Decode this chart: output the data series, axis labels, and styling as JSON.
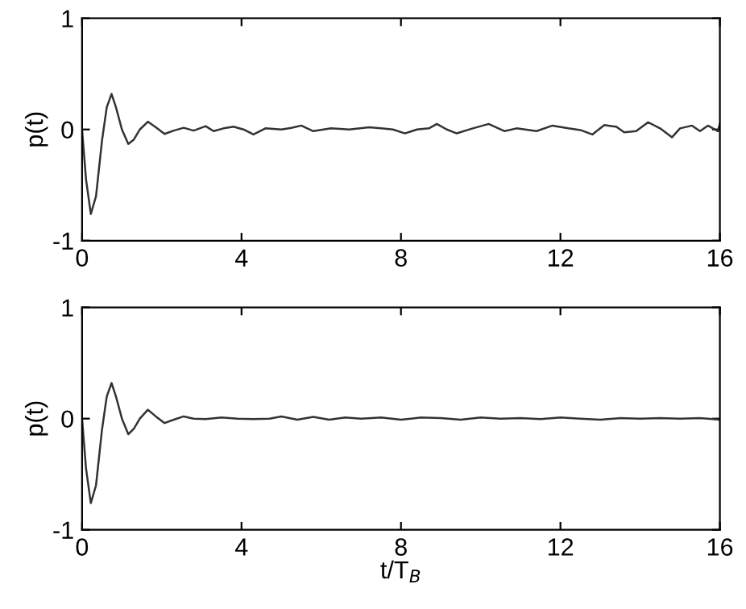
{
  "chart_data": [
    {
      "type": "line",
      "ylabel": "p(t)",
      "xlim": [
        0,
        16
      ],
      "ylim": [
        -1,
        1
      ],
      "xticks": [
        0,
        4,
        8,
        12,
        16
      ],
      "yticks": [
        -1,
        0,
        1
      ],
      "grid": false,
      "marker": "none",
      "line_style": "solid",
      "series": [
        {
          "color": "#333333",
          "x": [
            0,
            0.1,
            0.22,
            0.35,
            0.5,
            0.62,
            0.74,
            0.85,
            1.0,
            1.16,
            1.3,
            1.45,
            1.65,
            1.85,
            2.07,
            2.3,
            2.55,
            2.8,
            3.1,
            3.3,
            3.55,
            3.8,
            4.05,
            4.3,
            4.6,
            5.0,
            5.25,
            5.5,
            5.8,
            6.25,
            6.7,
            7.2,
            7.5,
            7.8,
            8.1,
            8.4,
            8.7,
            8.9,
            9.15,
            9.4,
            9.8,
            10.2,
            10.6,
            10.9,
            11.4,
            11.8,
            12.2,
            12.5,
            12.8,
            13.1,
            13.4,
            13.6,
            13.9,
            14.2,
            14.5,
            14.8,
            15.0,
            15.3,
            15.5,
            15.7,
            15.95,
            16.0
          ],
          "values": [
            0,
            -0.45,
            -0.76,
            -0.6,
            -0.1,
            0.2,
            0.32,
            0.2,
            0.0,
            -0.13,
            -0.09,
            0.0,
            0.07,
            0.02,
            -0.04,
            -0.01,
            0.015,
            -0.01,
            0.03,
            -0.015,
            0.01,
            0.025,
            0.0,
            -0.045,
            0.01,
            0.0,
            0.015,
            0.035,
            -0.015,
            0.01,
            0.0,
            0.02,
            0.01,
            0.0,
            -0.035,
            0.0,
            0.01,
            0.05,
            0.0,
            -0.035,
            0.01,
            0.05,
            -0.015,
            0.01,
            -0.015,
            0.035,
            0.01,
            -0.005,
            -0.045,
            0.04,
            0.025,
            -0.025,
            -0.015,
            0.065,
            0.01,
            -0.07,
            0.01,
            0.035,
            -0.015,
            0.035,
            -0.015,
            0.05
          ]
        }
      ]
    },
    {
      "type": "line",
      "ylabel": "p(t)",
      "xlabel": "t/T$_{B}$",
      "xlim": [
        0,
        16
      ],
      "ylim": [
        -1,
        1
      ],
      "xticks": [
        0,
        4,
        8,
        12,
        16
      ],
      "yticks": [
        -1,
        0,
        1
      ],
      "grid": false,
      "marker": "none",
      "line_style": "solid",
      "series": [
        {
          "color": "#333333",
          "x": [
            0,
            0.1,
            0.22,
            0.35,
            0.5,
            0.62,
            0.74,
            0.85,
            1.0,
            1.16,
            1.3,
            1.45,
            1.65,
            1.85,
            2.07,
            2.3,
            2.55,
            2.8,
            3.1,
            3.5,
            3.9,
            4.3,
            4.7,
            5.0,
            5.4,
            5.8,
            6.2,
            6.6,
            7.0,
            7.5,
            8.0,
            8.5,
            9.0,
            9.5,
            10.0,
            10.5,
            11.0,
            11.5,
            12.0,
            12.5,
            13.0,
            13.5,
            14.0,
            14.5,
            15.0,
            15.5,
            16.0
          ],
          "values": [
            0,
            -0.45,
            -0.76,
            -0.6,
            -0.1,
            0.2,
            0.32,
            0.2,
            0.0,
            -0.14,
            -0.09,
            0.0,
            0.08,
            0.02,
            -0.04,
            -0.01,
            0.02,
            0.0,
            -0.005,
            0.01,
            0.0,
            -0.005,
            0.0,
            0.02,
            -0.01,
            0.015,
            -0.01,
            0.01,
            0.0,
            0.01,
            -0.01,
            0.01,
            0.005,
            -0.01,
            0.01,
            0.0,
            0.005,
            -0.005,
            0.01,
            0.0,
            -0.01,
            0.005,
            0.0,
            0.005,
            0.0,
            0.005,
            -0.01
          ]
        }
      ]
    }
  ]
}
